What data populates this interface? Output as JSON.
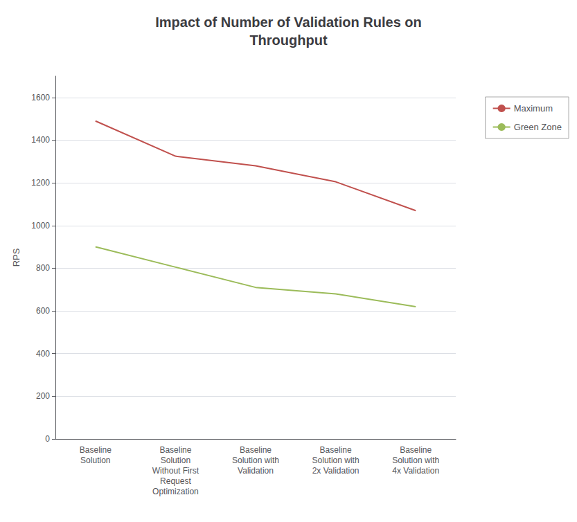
{
  "chart_data": {
    "type": "line",
    "title": "Impact of Number of Validation Rules on\nThroughput",
    "ylabel": "RPS",
    "categories": [
      "Baseline\nSolution",
      "Baseline\nSolution\nWithout First\nRequest\nOptimization",
      "Baseline\nSolution with\nValidation",
      "Baseline\nSolution with\n2x Validation",
      "Baseline\nSolution with\n4x Validation"
    ],
    "series": [
      {
        "name": "Maximum",
        "color": "#C0504D",
        "values": [
          1490,
          1325,
          1280,
          1205,
          1070
        ]
      },
      {
        "name": "Green Zone",
        "color": "#9BBB59",
        "values": [
          900,
          805,
          710,
          680,
          620
        ]
      }
    ],
    "ylim": [
      0,
      1700
    ],
    "yticks": [
      0,
      200,
      400,
      600,
      800,
      1000,
      1200,
      1400,
      1600
    ],
    "grid": true,
    "legend": "right"
  }
}
